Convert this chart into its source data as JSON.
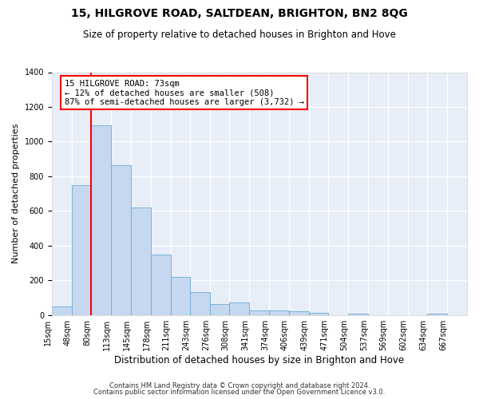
{
  "title1": "15, HILGROVE ROAD, SALTDEAN, BRIGHTON, BN2 8QG",
  "title2": "Size of property relative to detached houses in Brighton and Hove",
  "xlabel": "Distribution of detached houses by size in Brighton and Hove",
  "ylabel": "Number of detached properties",
  "footnote1": "Contains HM Land Registry data © Crown copyright and database right 2024.",
  "footnote2": "Contains public sector information licensed under the Open Government Licence v3.0.",
  "annotation_line1": "15 HILGROVE ROAD: 73sqm",
  "annotation_line2": "← 12% of detached houses are smaller (508)",
  "annotation_line3": "87% of semi-detached houses are larger (3,732) →",
  "bar_color": "#c5d8f0",
  "bar_edge_color": "#6aaad4",
  "red_line_x": 80,
  "categories": [
    "15sqm",
    "48sqm",
    "80sqm",
    "113sqm",
    "145sqm",
    "178sqm",
    "211sqm",
    "243sqm",
    "276sqm",
    "308sqm",
    "341sqm",
    "374sqm",
    "406sqm",
    "439sqm",
    "471sqm",
    "504sqm",
    "537sqm",
    "569sqm",
    "602sqm",
    "634sqm",
    "667sqm"
  ],
  "bin_edges": [
    15,
    48,
    80,
    113,
    145,
    178,
    211,
    243,
    276,
    308,
    341,
    374,
    406,
    439,
    471,
    504,
    537,
    569,
    602,
    634,
    667,
    700
  ],
  "bar_heights": [
    50,
    750,
    1095,
    865,
    620,
    350,
    220,
    130,
    65,
    70,
    28,
    25,
    20,
    12,
    0,
    8,
    0,
    0,
    0,
    10,
    0
  ],
  "ylim": [
    0,
    1400
  ],
  "yticks": [
    0,
    200,
    400,
    600,
    800,
    1000,
    1200,
    1400
  ],
  "bg_color": "#e8eef8",
  "title1_fontsize": 10,
  "title2_fontsize": 8.5,
  "ylabel_fontsize": 8,
  "xlabel_fontsize": 8.5,
  "tick_fontsize": 7,
  "footnote_fontsize": 6
}
